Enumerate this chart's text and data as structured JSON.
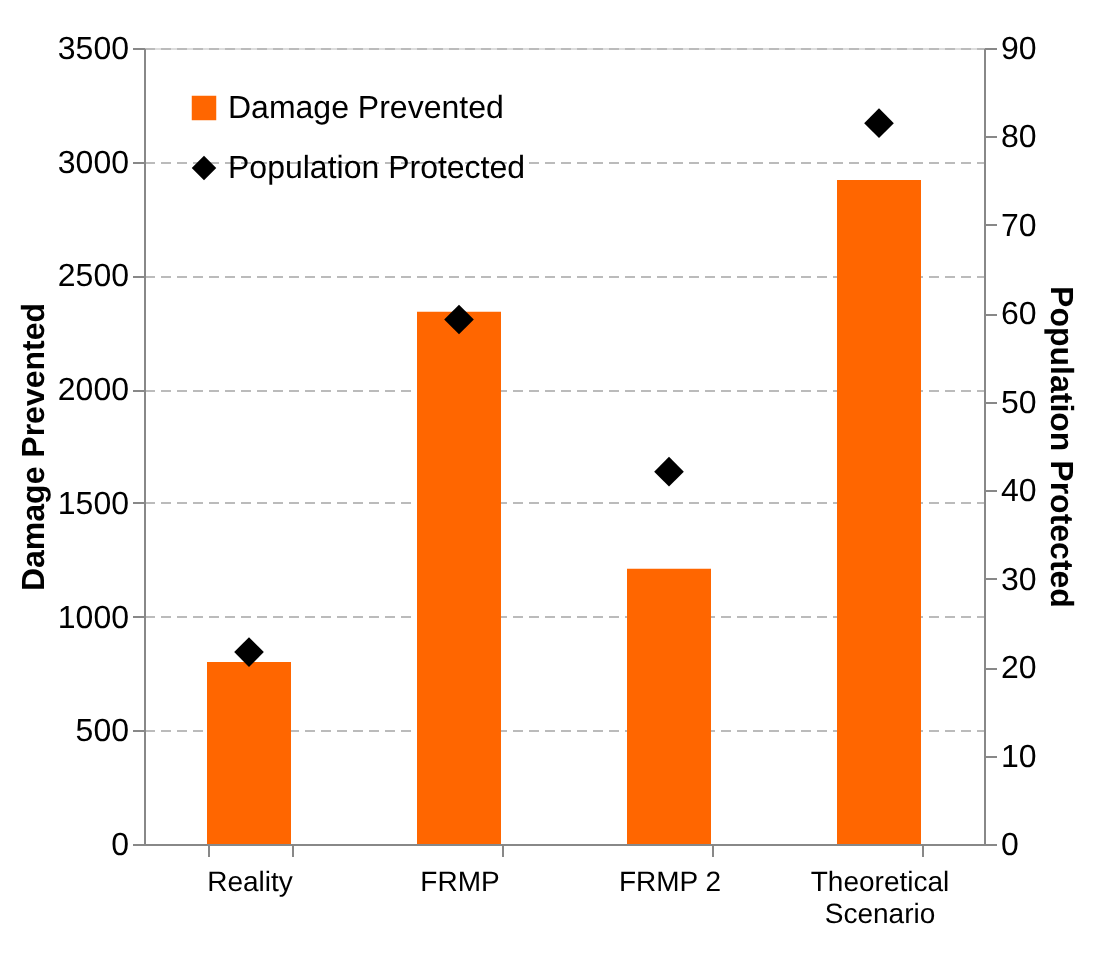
{
  "chart_data": {
    "type": "bar",
    "categories": [
      "Reality",
      "FRMP",
      "FRMP 2",
      "Theoretical Scenario"
    ],
    "series": [
      {
        "name": "Damage Prevented",
        "color": "#ff6600",
        "values": [
          800,
          2340,
          1210,
          2920
        ]
      },
      {
        "name": "Population Protected",
        "type": "scatter",
        "axis": "y2",
        "marker": "diamond",
        "color": "#000000",
        "values": [
          21.7,
          59.3,
          42.1,
          81.5
        ]
      }
    ],
    "ylabel": "Damage Prevented",
    "y2label": "Population Protected",
    "ylim": [
      0,
      3500
    ],
    "yticks": [
      0,
      500,
      1000,
      1500,
      2000,
      2500,
      3000,
      3500
    ],
    "y2lim": [
      0,
      90
    ],
    "y2ticks": [
      0,
      10,
      20,
      30,
      40,
      50,
      60,
      70,
      80,
      90
    ],
    "grid": "y",
    "legend": "top left"
  }
}
